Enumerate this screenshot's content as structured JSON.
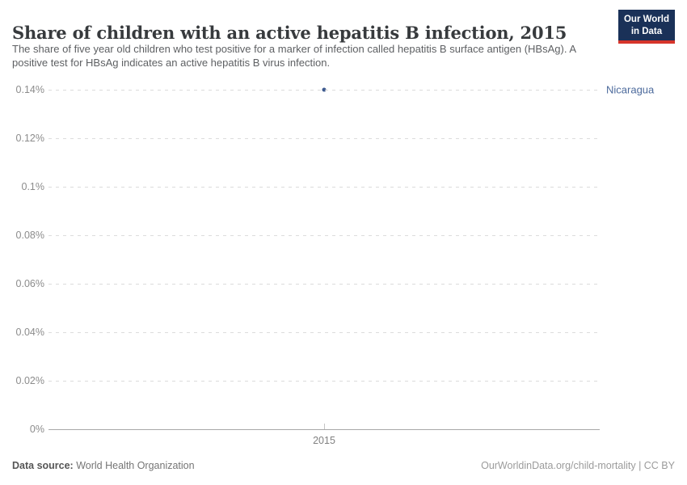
{
  "header": {
    "title": "Share of children with an active hepatitis B infection, 2015",
    "subtitle": "The share of five year old children who test positive for a marker of infection called hepatitis B surface antigen (HBsAg). A positive test for HBsAg indicates an active hepatitis B virus infection.",
    "logo": {
      "line1": "Our World",
      "line2": "in Data",
      "bg_color": "#1a3158",
      "accent_color": "#d6352b"
    }
  },
  "chart_data": {
    "type": "scatter",
    "title": "Share of children with an active hepatitis B infection, 2015",
    "x": [
      2015
    ],
    "series": [
      {
        "name": "Nicaragua",
        "x": [
          2015
        ],
        "values": [
          0.14
        ]
      }
    ],
    "xlabel": "",
    "ylabel": "",
    "ylim": [
      0,
      0.14
    ],
    "yticks": [
      {
        "value": 0.14,
        "label": "0.14%"
      },
      {
        "value": 0.12,
        "label": "0.12%"
      },
      {
        "value": 0.1,
        "label": "0.1%"
      },
      {
        "value": 0.08,
        "label": "0.08%"
      },
      {
        "value": 0.06,
        "label": "0.06%"
      },
      {
        "value": 0.04,
        "label": "0.04%"
      },
      {
        "value": 0.02,
        "label": "0.02%"
      },
      {
        "value": 0,
        "label": "0%"
      }
    ],
    "xticks": [
      {
        "value": 2015,
        "label": "2015"
      }
    ],
    "grid": "horizontal-dashed",
    "legend": "entity-label-right-of-point",
    "point_color": "#3d5a8f",
    "entity_label_color": "#4c6a9c"
  },
  "footer": {
    "source_label": "Data source:",
    "source_value": "World Health Organization",
    "license": "OurWorldinData.org/child-mortality | CC BY"
  }
}
